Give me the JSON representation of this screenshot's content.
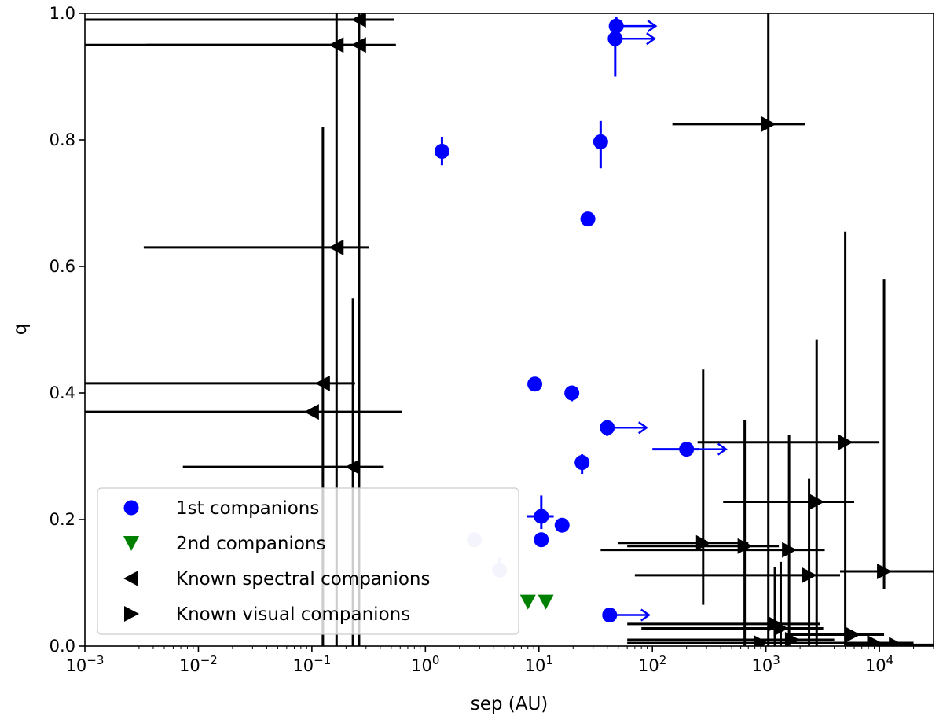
{
  "chart_data": {
    "type": "scatter",
    "title": "",
    "xlabel": "sep (AU)",
    "ylabel": "q",
    "xscale": "log",
    "xlim": [
      0.001,
      30000
    ],
    "ylim": [
      0.0,
      1.0
    ],
    "grid": false,
    "legend_position": "lower-left",
    "x_ticks": [
      {
        "value": 0.001,
        "base": "10",
        "exp": "−3"
      },
      {
        "value": 0.01,
        "base": "10",
        "exp": "−2"
      },
      {
        "value": 0.1,
        "base": "10",
        "exp": "−1"
      },
      {
        "value": 1,
        "base": "10",
        "exp": "0"
      },
      {
        "value": 10,
        "base": "10",
        "exp": "1"
      },
      {
        "value": 100,
        "base": "10",
        "exp": "2"
      },
      {
        "value": 1000,
        "base": "10",
        "exp": "3"
      },
      {
        "value": 10000,
        "base": "10",
        "exp": "4"
      }
    ],
    "y_ticks": [
      {
        "value": 0.0,
        "label": "0.0"
      },
      {
        "value": 0.2,
        "label": "0.2"
      },
      {
        "value": 0.4,
        "label": "0.4"
      },
      {
        "value": 0.6,
        "label": "0.6"
      },
      {
        "value": 0.8,
        "label": "0.8"
      },
      {
        "value": 1.0,
        "label": "1.0"
      }
    ],
    "series": [
      {
        "name": "1st companions",
        "color": "#0000ff",
        "marker": "circle",
        "points": [
          {
            "x": 48,
            "y": 0.98,
            "ylo": 0.965,
            "yhi": 0.995,
            "arrow": true
          },
          {
            "x": 47,
            "y": 0.96,
            "ylo": 0.9,
            "yhi": 0.98,
            "arrow": true
          },
          {
            "x": 1.4,
            "y": 0.782,
            "ylo": 0.76,
            "yhi": 0.805
          },
          {
            "x": 35,
            "y": 0.797,
            "ylo": 0.755,
            "yhi": 0.83
          },
          {
            "x": 27,
            "y": 0.675
          },
          {
            "x": 9.2,
            "y": 0.414
          },
          {
            "x": 19.5,
            "y": 0.4,
            "ylo": 0.387,
            "yhi": 0.41
          },
          {
            "x": 40,
            "y": 0.345,
            "ylo": 0.332,
            "yhi": 0.355,
            "arrow": true
          },
          {
            "x": 24,
            "y": 0.29,
            "ylo": 0.272,
            "yhi": 0.303
          },
          {
            "x": 200,
            "y": 0.311,
            "xlo": 100,
            "xhi": 260,
            "arrow": true
          },
          {
            "x": 10.5,
            "y": 0.205,
            "ylo": 0.185,
            "yhi": 0.238,
            "xlo": 7.8,
            "xhi": 13.5
          },
          {
            "x": 16,
            "y": 0.191
          },
          {
            "x": 10.5,
            "y": 0.168
          },
          {
            "x": 42,
            "y": 0.049,
            "arrow": true
          },
          {
            "x": 2.7,
            "y": 0.168,
            "ylo": 0.158,
            "yhi": 0.178,
            "faded": true
          },
          {
            "x": 4.5,
            "y": 0.12,
            "ylo": 0.108,
            "yhi": 0.14,
            "faded": true
          }
        ]
      },
      {
        "name": "2nd companions",
        "color": "#008000",
        "marker": "triangle-down",
        "points": [
          {
            "x": 8.0,
            "y": 0.07
          },
          {
            "x": 11.5,
            "y": 0.07
          }
        ]
      },
      {
        "name": "Known spectral companions",
        "color": "#000000",
        "marker": "triangle-left",
        "points": [
          {
            "x": 0.26,
            "y": 0.99,
            "xlo": 0.001,
            "xhi": 0.53,
            "ylo": 0.0,
            "yhi": 1.0
          },
          {
            "x": 0.165,
            "y": 0.95,
            "xlo": 0.001,
            "xhi": 0.25,
            "ylo": 0.0,
            "yhi": 1.0
          },
          {
            "x": 0.26,
            "y": 0.95,
            "xlo": 0.0035,
            "xhi": 0.55,
            "ylo": 0.0,
            "yhi": 1.0
          },
          {
            "x": 0.165,
            "y": 0.63,
            "xlo": 0.0033,
            "xhi": 0.32
          },
          {
            "x": 0.125,
            "y": 0.415,
            "xlo": 0.001,
            "xhi": 0.24,
            "ylo": 0.0,
            "yhi": 0.82
          },
          {
            "x": 0.23,
            "y": 0.283,
            "xlo": 0.0073,
            "xhi": 0.43,
            "ylo": 0.0,
            "yhi": 0.55
          },
          {
            "x": 0.1,
            "y": 0.37,
            "xlo": 0.001,
            "xhi": 0.62
          }
        ]
      },
      {
        "name": "Known visual companions",
        "color": "#000000",
        "marker": "triangle-right",
        "points": [
          {
            "x": 1050,
            "y": 0.825,
            "xlo": 150,
            "xhi": 2200,
            "ylo": 0.0,
            "yhi": 1.0
          },
          {
            "x": 5000,
            "y": 0.322,
            "xlo": 250,
            "xhi": 10000,
            "ylo": 0.0,
            "yhi": 0.655
          },
          {
            "x": 2800,
            "y": 0.228,
            "xlo": 420,
            "xhi": 6000,
            "ylo": 0.0,
            "yhi": 0.485
          },
          {
            "x": 280,
            "y": 0.163,
            "xlo": 50,
            "xhi": 700,
            "ylo": 0.065,
            "yhi": 0.437
          },
          {
            "x": 650,
            "y": 0.158,
            "xlo": 60,
            "xhi": 1300,
            "ylo": 0.0,
            "yhi": 0.357
          },
          {
            "x": 1600,
            "y": 0.152,
            "xlo": 35,
            "xhi": 3300,
            "ylo": 0.0,
            "yhi": 0.333
          },
          {
            "x": 11000,
            "y": 0.118,
            "xlo": 4500,
            "xhi": 30000,
            "ylo": 0.09,
            "yhi": 0.58
          },
          {
            "x": 2400,
            "y": 0.112,
            "xlo": 70,
            "xhi": 4500,
            "ylo": 0.0,
            "yhi": 0.265
          },
          {
            "x": 1200,
            "y": 0.035,
            "xlo": 60,
            "xhi": 3000,
            "ylo": 0.0,
            "yhi": 0.125
          },
          {
            "x": 1350,
            "y": 0.028,
            "xlo": 80,
            "xhi": 3200,
            "ylo": 0.0,
            "yhi": 0.133
          },
          {
            "x": 5800,
            "y": 0.018,
            "xlo": 1500,
            "xhi": 11000
          },
          {
            "x": 1700,
            "y": 0.01,
            "xlo": 60,
            "xhi": 4000
          },
          {
            "x": 9000,
            "y": 0.005,
            "xlo": 2000,
            "xhi": 20000
          },
          {
            "x": 900,
            "y": 0.005,
            "xlo": 60,
            "xhi": 3500
          },
          {
            "x": 14000,
            "y": 0.002,
            "xlo": 5000,
            "xhi": 30000
          }
        ]
      }
    ],
    "legend": [
      {
        "label": "1st companions",
        "series": 0
      },
      {
        "label": "2nd companions",
        "series": 1
      },
      {
        "label": "Known spectral companions",
        "series": 2
      },
      {
        "label": "Known visual companions",
        "series": 3
      }
    ]
  }
}
